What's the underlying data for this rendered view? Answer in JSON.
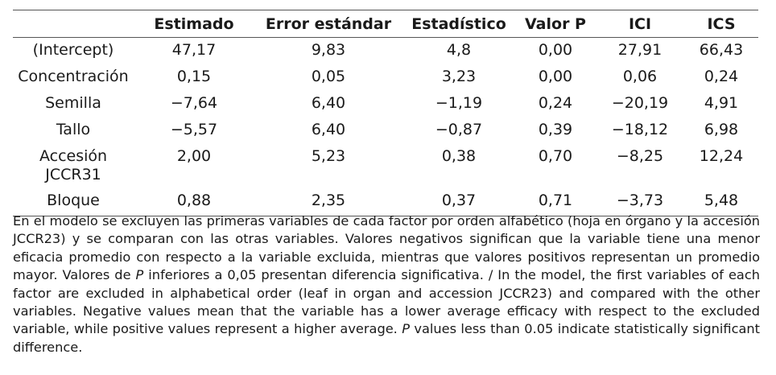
{
  "table": {
    "headers": [
      "",
      "Estimado",
      "Error estándar",
      "Estadístico",
      "Valor P",
      "ICI",
      "ICS"
    ],
    "rows": [
      [
        "(Intercept)",
        "47,17",
        "9,83",
        "4,8",
        "0,00",
        "27,91",
        "66,43"
      ],
      [
        "Concentración",
        "0,15",
        "0,05",
        "3,23",
        "0,00",
        "0,06",
        "0,24"
      ],
      [
        "Semilla",
        "−7,64",
        "6,40",
        "−1,19",
        "0,24",
        "−20,19",
        "4,91"
      ],
      [
        "Tallo",
        "−5,57",
        "6,40",
        "−0,87",
        "0,39",
        "−18,12",
        "6,98"
      ],
      [
        "Accesión JCCR31",
        "2,00",
        "5,23",
        "0,38",
        "0,70",
        "−8,25",
        "12,24"
      ],
      [
        "Bloque",
        "0,88",
        "2,35",
        "0,37",
        "0,71",
        "−3,73",
        "5,48"
      ]
    ]
  },
  "note": {
    "part1": "En el modelo se excluyen las primeras variables de cada factor por orden alfabético (hoja en órgano y la accesión JCCR23) y se comparan con las otras variables. Valores negativos significan que la variable tiene una menor eficacia promedio con respecto a la variable excluida, mientras que valores positivos representan un promedio mayor. Valores de ",
    "italic1": "P",
    "part2": " inferiores a 0,05 presentan diferencia significativa. / In the model, the first variables of each factor are excluded in alphabetical order (leaf in organ and accession JCCR23) and compared with the other variables. Negative values mean that the variable has a lower average efficacy with respect to the excluded variable, while positive values represent a higher average. ",
    "italic2": "P",
    "part3": " values less than 0.05 indicate statistically significant difference."
  }
}
